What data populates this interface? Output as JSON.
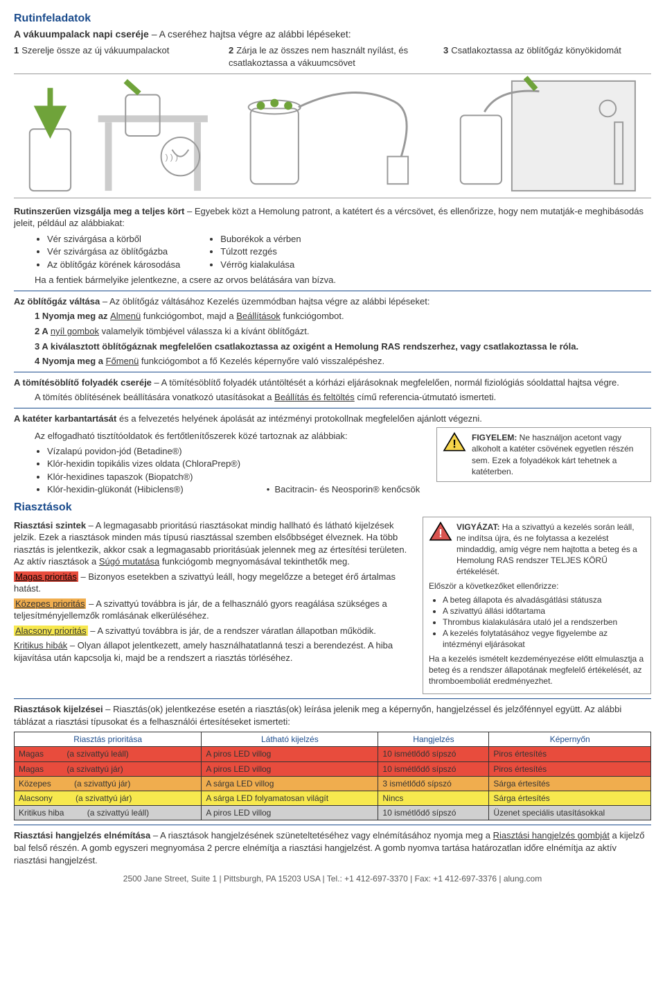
{
  "title_routine": "Rutinfeladatok",
  "vacuum_change": {
    "heading_bold": "A vákuumpalack napi cseréje",
    "heading_rest": " – A cseréhez hajtsa végre az alábbi lépéseket:",
    "steps": [
      {
        "n": "1",
        "text": "Szerelje össze az új vákuumpalackot"
      },
      {
        "n": "2",
        "text": "Zárja le az összes nem használt nyílást, és csatlakoztassa a vákuumcsövet"
      },
      {
        "n": "3",
        "text": "Csatlakoztassa az öblítőgáz könyökidomát"
      }
    ]
  },
  "inspect": {
    "bold": "Rutinszerűen vizsgálja meg a teljes kört",
    "rest": " – Egyebek közt a Hemolung patront, a katétert és a vércsövet, és ellenőrizze, hogy nem mutatják-e meghibásodás jeleit, például az alábbiakat:",
    "col1": [
      "Vér szivárgása a körből",
      "Vér szivárgása az öblítőgázba",
      "Az öblítőgáz körének károsodása"
    ],
    "col2": [
      "Buborékok a vérben",
      "Túlzott rezgés",
      "Vérrög kialakulása"
    ],
    "footer": "Ha a fentiek bármelyike jelentkezne, a csere az orvos belátására van bízva."
  },
  "sweep": {
    "bold": "Az öblítőgáz váltása",
    "rest": " – Az öblítőgáz váltásához Kezelés üzemmódban hajtsa végre az alábbi lépéseket:",
    "s1a": "1 Nyomja meg az ",
    "s1_u1": "Almenü",
    "s1b": " funkciógombot, majd a ",
    "s1_u2": "Beállítások",
    "s1c": " funkciógombot.",
    "s2a": "2 A ",
    "s2_u": "nyíl gombok",
    "s2b": " valamelyik tömbjével válassza ki a kívánt öblítőgázt.",
    "s3": "3 A kiválasztott öblítőgáznak megfelelően csatlakoztassa az oxigént a Hemolung RAS rendszerhez, vagy csatlakoztassa le róla.",
    "s4a": "4 Nyomja meg a ",
    "s4_u": "Főmenü",
    "s4b": " funkciógombot a fő Kezelés képernyőre való visszalépéshez."
  },
  "seal": {
    "bold": "A tömítésöblítő folyadék cseréje",
    "rest": " – A tömítésöblítő folyadék utántöltését a kórházi eljárásoknak megfelelően, normál fiziológiás sóoldattal hajtsa végre.",
    "line2a": "A tömítés öblítésének beállítására vonatkozó utasításokat a ",
    "line2_u": "Beállítás és feltöltés",
    "line2b": " című referencia-útmutató ismerteti."
  },
  "catheter": {
    "bold": "A katéter karbantartását",
    "rest": " és a felvezetés helyének ápolását az intézményi protokollnak megfelelően ajánlott végezni.",
    "intro": "Az elfogadható tisztítóoldatok és fertőtlenítőszerek közé tartoznak az alábbiak:",
    "items": [
      "Vízalapú povidon-jód (Betadine®)",
      "Klór-hexidin topikális vizes oldata (ChloraPrep®)",
      "Klór-hexidines tapaszok (Biopatch®)",
      "Klór-hexidin-glükonát (Hibiclens®)"
    ],
    "extra": "Bacitracin- és Neosporin® kenőcsök",
    "warn_bold": "FIGYELEM:",
    "warn": " Ne használjon acetont vagy alkoholt a katéter csövének egyetlen részén sem. Ezek a folyadékok kárt tehetnek a katéterben."
  },
  "alarms_title": "Riasztások",
  "levels": {
    "bold": "Riasztási szintek",
    "intro_a": " – A legmagasabb prioritású riasztásokat mindig hallható és látható kijelzések jelzik. Ezek a riasztások minden más típusú riasztással szemben elsőbbséget élveznek. Ha több riasztás is jelentkezik, akkor csak a legmagasabb prioritásúak jelennek meg az értesítési területen. Az aktív riasztások a ",
    "intro_u": "Súgó mutatása",
    "intro_b": " funkciógomb megnyomásával tekinthetők meg.",
    "high_label": "Magas prioritás",
    "high_text": " – Bizonyos esetekben a szivattyú leáll, hogy megelőzze a beteget érő ártalmas hatást.",
    "med_label": "Közepes prioritás",
    "med_text": " – A szivattyú továbbra is jár, de a felhasználó gyors reagálása szükséges a teljesítményjellemzők romlásának elkerüléséhez.",
    "low_label": "Alacsony prioritás",
    "low_text": " – A szivattyú továbbra is jár, de a rendszer váratlan állapotban működik.",
    "crit_label": "Kritikus hibák",
    "crit_text": " – Olyan állapot jelentkezett, amely használhatatlanná teszi a berendezést. A hiba kijavítása után kapcsolja ki, majd be a rendszert a riasztás törléséhez."
  },
  "caution": {
    "bold": "VIGYÁZAT:",
    "p1": " Ha a szivattyú a kezelés során leáll, ne indítsa újra, és ne folytassa a kezelést mindaddig, amíg végre nem hajtotta a beteg és a Hemolung RAS rendszer TELJES KÖRŰ értékelését.",
    "p2": "Először a következőket ellenőrizze:",
    "items": [
      "A beteg állapota és alvadásgátlási státusza",
      "A szivattyú állási időtartama",
      "Thrombus kialakulására utaló jel a rendszerben",
      "A kezelés folytatásához vegye figyelembe az intézményi eljárásokat"
    ],
    "p3": "Ha a kezelés ismételt kezdeményezése előtt elmulasztja a beteg és a rendszer állapotának megfelelő értékelését, az thromboemboliát eredményezhet."
  },
  "indications": {
    "bold": "Riasztások kijelzései",
    "intro": " – Riasztás(ok) jelentkezése esetén a riasztás(ok) leírása jelenik meg a képernyőn, hangjelzéssel és jelzőfénnyel együtt. Az alábbi táblázat a riasztási típusokat és a felhasználói értesítéseket ismerteti:",
    "headers": [
      "Riasztás prioritása",
      "Látható kijelzés",
      "Hangjelzés",
      "Képernyőn"
    ],
    "rows": [
      {
        "cls": "row-red",
        "c1": "Magas",
        "c1b": "(a szivattyú leáll)",
        "c2": "A piros LED villog",
        "c3": "10 ismétlődő sípszó",
        "c4": "Piros értesítés"
      },
      {
        "cls": "row-red",
        "c1": "Magas",
        "c1b": "(a szivattyú jár)",
        "c2": "A piros LED villog",
        "c3": "10 ismétlődő sípszó",
        "c4": "Piros értesítés"
      },
      {
        "cls": "row-orange",
        "c1": "Közepes",
        "c1b": "(a szivattyú jár)",
        "c2": "A sárga LED villog",
        "c3": "3 ismétlődő sípszó",
        "c4": "Sárga értesítés"
      },
      {
        "cls": "row-yellow",
        "c1": "Alacsony",
        "c1b": "(a szivattyú jár)",
        "c2": "A sárga LED folyamatosan világít",
        "c3": "Nincs",
        "c4": "Sárga értesítés"
      },
      {
        "cls": "row-gray",
        "c1": "Kritikus hiba",
        "c1b": "(a szivattyú leáll)",
        "c2": "A piros LED villog",
        "c3": "10 ismétlődő sípszó",
        "c4": "Üzenet speciális utasításokkal"
      }
    ]
  },
  "mute": {
    "bold": "Riasztási hangjelzés elnémítása",
    "a": " – A riasztások hangjelzésének szüneteltetéséhez vagy elnémításához nyomja meg a ",
    "u": "Riasztási hangjelzés gombját",
    "b": " a kijelző bal felső részén. A gomb egyszeri megnyomása 2 percre elnémítja a riasztási hangjelzést. A gomb nyomva tartása határozatlan időre elnémítja az aktív riasztási hangjelzést."
  },
  "footer": "2500 Jane Street, Suite 1 | Pittsburgh, PA 15203 USA | Tel.: +1 412-697-3370 | Fax: +1 412-697-3376 | alung.com",
  "colors": {
    "blue": "#1a4b8c",
    "red": "#e84c3d",
    "orange": "#f0ad4e",
    "yellow": "#f7e84e",
    "gray": "#d0d0d0"
  }
}
